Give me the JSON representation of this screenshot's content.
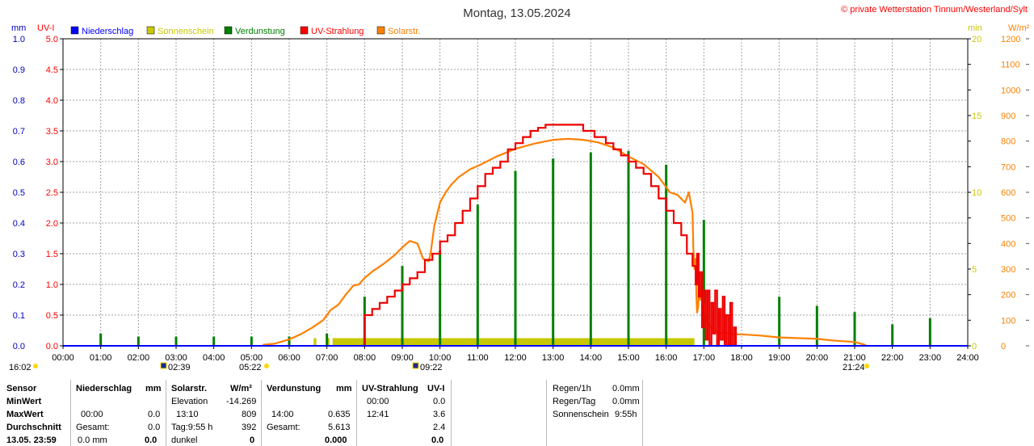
{
  "chart_data": {
    "type": "line",
    "title": "Montag, 13.05.2024",
    "copyright": "© private Wetterstation Tinnum/Westerland/Sylt",
    "units": {
      "left_outer": "mm",
      "left_inner": "UV-I",
      "right_inner": "min",
      "right_outer": "W/m²"
    },
    "axes": {
      "mm": {
        "range": [
          0,
          1.0
        ],
        "ticks": [
          "0.0",
          "0.1",
          "0.2",
          "0.3",
          "0.4",
          "0.5",
          "0.6",
          "0.7",
          "0.8",
          "0.9",
          "1.0"
        ]
      },
      "uv": {
        "range": [
          0,
          5.0
        ],
        "ticks": [
          "0.0",
          "0.5",
          "1.0",
          "1.5",
          "2.0",
          "2.5",
          "3.0",
          "3.5",
          "4.0",
          "4.5",
          "5.0"
        ]
      },
      "min": {
        "range": [
          0,
          20
        ],
        "ticks": [
          "0",
          "5",
          "10",
          "15",
          "20"
        ]
      },
      "wm2": {
        "range": [
          0,
          1200
        ],
        "ticks": [
          "0",
          "100",
          "200",
          "300",
          "400",
          "500",
          "600",
          "700",
          "800",
          "900",
          "1000",
          "1100",
          "1200"
        ]
      },
      "x_ticks": [
        "00:00",
        "01:00",
        "02:00",
        "03:00",
        "04:00",
        "05:00",
        "06:00",
        "07:00",
        "08:00",
        "09:00",
        "10:00",
        "11:00",
        "12:00",
        "13:00",
        "14:00",
        "15:00",
        "16:00",
        "17:00",
        "18:00",
        "19:00",
        "20:00",
        "21:00",
        "22:00",
        "23:00",
        "24:00"
      ],
      "x_range_hours": [
        0,
        24
      ]
    },
    "legend": [
      {
        "label": "Niederschlag",
        "color": "#0000ff"
      },
      {
        "label": "Sonnenschein",
        "color": "#c8c800"
      },
      {
        "label": "Verdunstung",
        "color": "#008000"
      },
      {
        "label": "UV-Strahlung",
        "color": "#ff0000"
      },
      {
        "label": "Solarstr.",
        "color": "#ff8000"
      }
    ],
    "sun_markers": [
      {
        "time": "16:02",
        "row": "low"
      },
      {
        "time": "02:39",
        "row": "low"
      },
      {
        "time": "05:22",
        "row": "high"
      },
      {
        "time": "09:22",
        "row": "low"
      },
      {
        "time": "21:24",
        "row": "high"
      }
    ],
    "sunshine_blocks": [
      [
        6.65,
        6.72
      ],
      [
        7.0,
        7.07
      ],
      [
        7.15,
        16.75
      ]
    ],
    "sunshine_min_level": 0.5,
    "evaporation_times": [
      1.0,
      2.0,
      3.0,
      4.0,
      5.0,
      6.0,
      7.0,
      8.0,
      9.0,
      10.0,
      11.0,
      12.0,
      13.0,
      14.0,
      15.0,
      16.0,
      17.0,
      19.0,
      20.0,
      21.0,
      22.0,
      23.0
    ],
    "evaporation_mm": [
      0.04,
      0.03,
      0.03,
      0.03,
      0.03,
      0.03,
      0.04,
      0.16,
      0.26,
      0.31,
      0.46,
      0.57,
      0.61,
      0.63,
      0.635,
      0.59,
      0.41,
      0.16,
      0.13,
      0.11,
      0.07,
      0.09
    ],
    "solar_series": {
      "name": "Solarstr.",
      "x": [
        5.3,
        5.6,
        6.0,
        6.3,
        6.6,
        6.9,
        7.1,
        7.3,
        7.5,
        7.7,
        7.85,
        8.0,
        8.2,
        8.5,
        8.8,
        9.0,
        9.2,
        9.4,
        9.55,
        9.7,
        9.75,
        9.85,
        10.0,
        10.15,
        10.3,
        10.5,
        10.8,
        11.1,
        11.5,
        12.0,
        12.5,
        13.0,
        13.4,
        13.8,
        14.2,
        14.6,
        15.0,
        15.4,
        15.8,
        16.1,
        16.3,
        16.5,
        16.6,
        16.7,
        16.72,
        16.75,
        16.78,
        16.8,
        16.82,
        16.85,
        16.88,
        16.9,
        16.95,
        17.0,
        17.05,
        17.1,
        17.2,
        17.4,
        17.6,
        17.8,
        18.0,
        18.5,
        19.0,
        19.5,
        20.0,
        20.5,
        21.0,
        21.3
      ],
      "values": [
        4,
        8,
        25,
        45,
        70,
        100,
        140,
        160,
        200,
        235,
        240,
        265,
        290,
        320,
        355,
        385,
        410,
        400,
        340,
        330,
        360,
        470,
        560,
        600,
        630,
        660,
        690,
        710,
        740,
        770,
        790,
        805,
        809,
        805,
        795,
        775,
        740,
        710,
        660,
        600,
        590,
        560,
        600,
        520,
        380,
        300,
        340,
        200,
        130,
        150,
        250,
        180,
        220,
        160,
        120,
        90,
        70,
        50,
        50,
        45,
        45,
        40,
        33,
        30,
        27,
        20,
        15,
        3
      ]
    },
    "uv_series": {
      "name": "UV-Strahlung",
      "x": [
        7.9,
        8.0,
        8.2,
        8.4,
        8.6,
        8.8,
        9.0,
        9.2,
        9.4,
        9.6,
        9.8,
        10.0,
        10.2,
        10.4,
        10.6,
        10.8,
        11.0,
        11.2,
        11.4,
        11.6,
        11.8,
        12.0,
        12.2,
        12.4,
        12.6,
        12.8,
        13.4,
        13.8,
        14.1,
        14.4,
        14.6,
        14.8,
        15.0,
        15.2,
        15.4,
        15.6,
        15.8,
        16.0,
        16.2,
        16.4,
        16.55,
        16.7,
        16.78,
        16.82,
        16.86,
        16.9,
        16.95,
        17.0,
        17.05,
        17.1,
        17.15,
        17.2,
        17.25,
        17.3,
        17.35,
        17.4,
        17.45,
        17.5,
        17.55,
        17.6,
        17.65,
        17.7,
        17.75,
        17.8,
        17.85,
        17.9
      ],
      "values": [
        0.0,
        0.5,
        0.6,
        0.7,
        0.8,
        0.9,
        1.0,
        1.1,
        1.2,
        1.4,
        1.5,
        1.7,
        1.8,
        2.0,
        2.2,
        2.4,
        2.6,
        2.8,
        2.9,
        3.0,
        3.2,
        3.3,
        3.4,
        3.5,
        3.55,
        3.6,
        3.6,
        3.5,
        3.4,
        3.3,
        3.2,
        3.1,
        3.0,
        2.9,
        2.8,
        2.6,
        2.4,
        2.2,
        2.0,
        1.8,
        1.5,
        1.3,
        1.0,
        1.5,
        0.8,
        1.2,
        0.3,
        0.9,
        0.1,
        0.9,
        0.0,
        0.7,
        0.2,
        0.9,
        0.0,
        0.6,
        0.1,
        0.8,
        0.0,
        0.5,
        0.0,
        0.7,
        0.0,
        0.3,
        0.0,
        0.0
      ]
    }
  },
  "stats": {
    "sensor": {
      "header": "Sensor",
      "rows": [
        "MinWert",
        "MaxWert",
        "Durchschnitt",
        "13.05. 23:59"
      ]
    },
    "niederschlag": {
      "header": "Niederschlag",
      "unit": "mm",
      "min_time": "",
      "min_value": "",
      "max_time": "00:00",
      "max_value": "0.0",
      "avg_label": "Gesamt:",
      "avg_value": "0.0",
      "cur_value": "0.0 mm",
      "cur_bold": "0.0"
    },
    "solar": {
      "header": "Solarstr.",
      "unit": "W/m²",
      "min_label": "Elevation",
      "min_value": "-14.269",
      "max_time": "13:10",
      "max_value": "809",
      "avg_label": "Tag:9:55 h",
      "avg_value": "392",
      "cur_label": "dunkel",
      "cur_bold": "0"
    },
    "verdunstung": {
      "header": "Verdunstung",
      "unit": "mm",
      "max_time": "14:00",
      "max_value": "0.635",
      "avg_label": "Gesamt:",
      "avg_value": "5.613",
      "cur_bold": "0.000"
    },
    "uv": {
      "header": "UV-Strahlung",
      "unit": "UV-I",
      "min_time": "00:00",
      "min_value": "0.0",
      "max_time": "12:41",
      "max_value": "3.6",
      "avg_value": "2.4",
      "cur_bold": "0.0"
    },
    "extra": {
      "rows": [
        {
          "label": "Regen/1h",
          "value": "0.0mm"
        },
        {
          "label": "Regen/Tag",
          "value": "0.0mm"
        },
        {
          "label": "Sonnenschein",
          "value": "9:55h"
        }
      ]
    }
  }
}
